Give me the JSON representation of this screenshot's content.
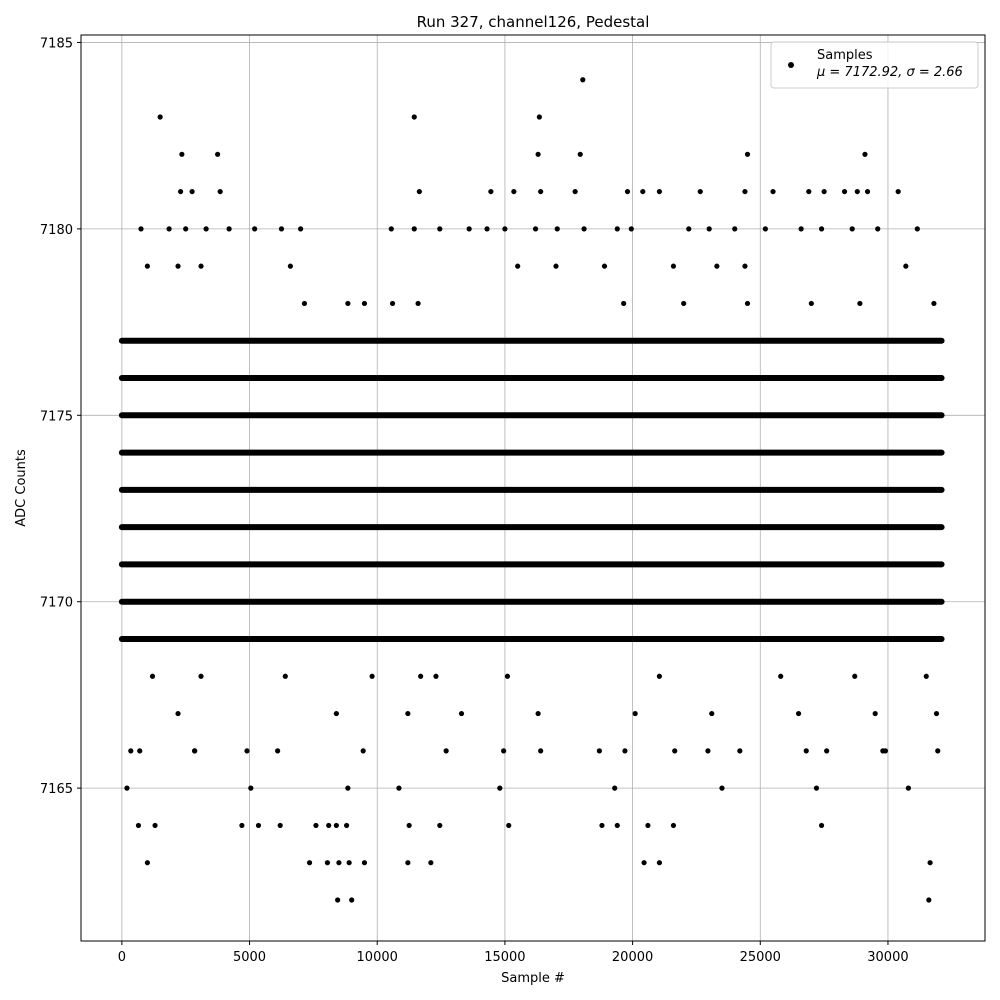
{
  "chart_data": {
    "type": "scatter",
    "title": "Run 327, channel126, Pedestal",
    "xlabel": "Sample #",
    "ylabel": "ADC Counts",
    "xlim": [
      -1600,
      33800
    ],
    "ylim": [
      7160.9,
      7185.2
    ],
    "xticks": [
      0,
      5000,
      10000,
      15000,
      20000,
      25000,
      30000
    ],
    "yticks": [
      7165,
      7170,
      7175,
      7180,
      7185
    ],
    "grid": true,
    "legend": {
      "position": "top-right",
      "label": "Samples",
      "stats": "μ = 7172.92, σ = 2.66"
    },
    "series": [
      {
        "name": "Samples",
        "color": "#000000",
        "marker": "circle",
        "n_samples": 32100,
        "dense_levels": [
          7169,
          7170,
          7171,
          7172,
          7173,
          7174,
          7175,
          7176,
          7177
        ],
        "x": [
          1500,
          11450,
          16350,
          18050,
          2350,
          3750,
          16300,
          17950,
          24500,
          29100,
          2300,
          2750,
          3850,
          11650,
          14450,
          15350,
          16400,
          17750,
          19800,
          20400,
          21050,
          22650,
          24400,
          25500,
          26900,
          27500,
          28300,
          28800,
          29200,
          30400,
          750,
          1850,
          2500,
          3300,
          4200,
          5200,
          6250,
          7000,
          10550,
          11450,
          12450,
          13600,
          14300,
          15000,
          16200,
          17050,
          18100,
          19400,
          19950,
          22200,
          23000,
          24000,
          25200,
          26600,
          27400,
          28600,
          29600,
          31150,
          1000,
          3100,
          6600,
          2200,
          15500,
          17000,
          18900,
          21600,
          23300,
          24400,
          30700,
          7150,
          8850,
          9500,
          10600,
          11600,
          19650,
          22000,
          24500,
          27000,
          28900,
          31800,
          1200,
          3100,
          6400,
          9800,
          11700,
          12300,
          15100,
          21050,
          25800,
          28700,
          31500,
          2200,
          8400,
          11200,
          13300,
          16300,
          20100,
          23100,
          26500,
          29500,
          31900,
          700,
          2850,
          4900,
          12700,
          16400,
          19700,
          22950,
          26800,
          29900,
          200,
          5050,
          8850,
          10850,
          14800,
          19300,
          23500,
          27200,
          30800,
          350,
          2850,
          6100,
          9450,
          14950,
          18700,
          21650,
          24200,
          27600,
          29800,
          31950,
          650,
          1300,
          4700,
          5350,
          6200,
          7600,
          8100,
          8400,
          8800,
          11250,
          12450,
          15150,
          18800,
          19400,
          20600,
          21600,
          27400,
          1000,
          7350,
          8050,
          8500,
          8900,
          9500,
          11200,
          12100,
          20450,
          21050,
          31650,
          8450,
          9000,
          31600
        ],
        "y": [
          7183,
          7183,
          7183,
          7184,
          7182,
          7182,
          7182,
          7182,
          7182,
          7182,
          7181,
          7181,
          7181,
          7181,
          7181,
          7181,
          7181,
          7181,
          7181,
          7181,
          7181,
          7181,
          7181,
          7181,
          7181,
          7181,
          7181,
          7181,
          7181,
          7181,
          7180,
          7180,
          7180,
          7180,
          7180,
          7180,
          7180,
          7180,
          7180,
          7180,
          7180,
          7180,
          7180,
          7180,
          7180,
          7180,
          7180,
          7180,
          7180,
          7180,
          7180,
          7180,
          7180,
          7180,
          7180,
          7180,
          7180,
          7180,
          7179,
          7179,
          7179,
          7179,
          7179,
          7179,
          7179,
          7179,
          7179,
          7179,
          7179,
          7178,
          7178,
          7178,
          7178,
          7178,
          7178,
          7178,
          7178,
          7178,
          7178,
          7178,
          7168,
          7168,
          7168,
          7168,
          7168,
          7168,
          7168,
          7168,
          7168,
          7168,
          7168,
          7167,
          7167,
          7167,
          7167,
          7167,
          7167,
          7167,
          7167,
          7167,
          7167,
          7166,
          7166,
          7166,
          7166,
          7166,
          7166,
          7166,
          7166,
          7166,
          7165,
          7165,
          7165,
          7165,
          7165,
          7165,
          7165,
          7165,
          7165,
          7166,
          7166,
          7166,
          7166,
          7166,
          7166,
          7166,
          7166,
          7166,
          7166,
          7166,
          7164,
          7164,
          7164,
          7164,
          7164,
          7164,
          7164,
          7164,
          7164,
          7164,
          7164,
          7164,
          7164,
          7164,
          7164,
          7164,
          7164,
          7163,
          7163,
          7163,
          7163,
          7163,
          7163,
          7163,
          7163,
          7163,
          7163,
          7163,
          7162,
          7162,
          7162
        ]
      }
    ]
  }
}
